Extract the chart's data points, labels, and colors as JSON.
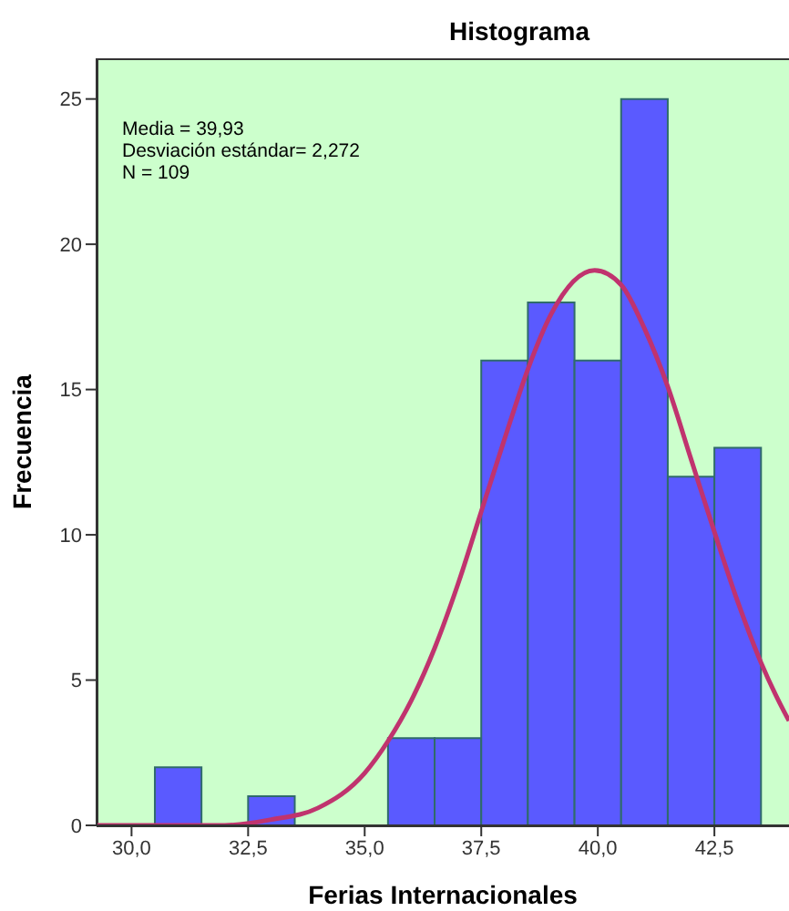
{
  "chart_data": {
    "type": "histogram",
    "title": "Histograma",
    "xlabel": "Ferias Internacionales",
    "ylabel": "Frecuencia",
    "annotations": [
      "Media = 39,93",
      "Desviación estándar= 2,272",
      "N = 109"
    ],
    "bins": [
      30.5,
      31.5,
      32.5,
      33.5,
      34.5,
      35.5,
      36.5,
      37.5,
      38.5,
      39.5,
      40.5,
      41.5,
      42.5,
      43.5
    ],
    "values": [
      2,
      0,
      1,
      0,
      0,
      3,
      3,
      16,
      18,
      16,
      25,
      12,
      13
    ],
    "color": "#5a5aff",
    "series": [
      {
        "type": "line",
        "color": "#c0336e",
        "x": [
          29.25,
          31,
          32,
          33,
          34,
          35,
          35.5,
          36,
          36.5,
          37,
          37.5,
          38,
          38.5,
          39,
          39.93,
          40.5,
          41,
          41.5,
          42,
          42.5,
          43,
          43.5,
          44,
          44.1
        ],
        "values": [
          0,
          0,
          0,
          0.2,
          0.6,
          1.8,
          2.9,
          4.3,
          6.1,
          8.3,
          10.8,
          13.3,
          15.7,
          17.6,
          19.1,
          18.6,
          17.1,
          15.1,
          12.6,
          10.1,
          7.7,
          5.6,
          3.9,
          3.6
        ]
      }
    ],
    "marker": "none",
    "line_style": "solid",
    "grid": false,
    "xlim": [
      29.25,
      44.1
    ],
    "ylim": [
      0,
      26.4
    ],
    "xticks": [
      {
        "value": 30,
        "label": "30,0"
      },
      {
        "value": 32.5,
        "label": "32,5"
      },
      {
        "value": 35,
        "label": "35,0"
      },
      {
        "value": 37.5,
        "label": "37,5"
      },
      {
        "value": 40,
        "label": "40,0"
      },
      {
        "value": 42.5,
        "label": "42,5"
      }
    ],
    "yticks": [
      0,
      5,
      10,
      15,
      20,
      25
    ]
  }
}
